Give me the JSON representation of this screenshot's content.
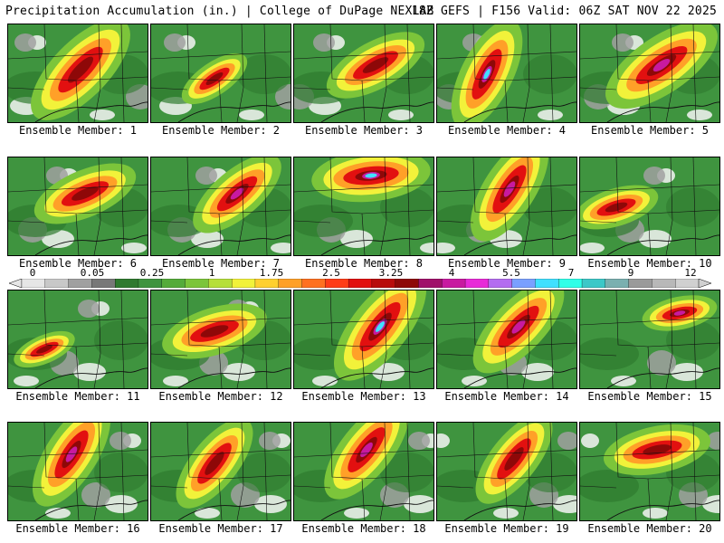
{
  "header": {
    "title": "Precipitation Accumulation (in.) | College of DuPage NEXLAB",
    "run_info": "18Z GEFS | F156 Valid: 06Z SAT NOV 22 2025"
  },
  "colorbar": {
    "labels": [
      "0",
      "0.05",
      "0.25",
      "1",
      "1.75",
      "2.5",
      "3.25",
      "4",
      "5.5",
      "7",
      "9",
      "12"
    ],
    "colors": [
      "#e6e6e6",
      "#c8c8c8",
      "#a0a0a0",
      "#787878",
      "#2f7a2f",
      "#3f943f",
      "#55ab3a",
      "#7cc53a",
      "#b6df3a",
      "#f2f23a",
      "#ffd030",
      "#ffa028",
      "#ff7020",
      "#ff3c18",
      "#e21010",
      "#b80c0c",
      "#8e0808",
      "#a0106a",
      "#c81aa0",
      "#e82ad8",
      "#b46cf0",
      "#7aa0ff",
      "#40e0ff",
      "#30ffe8",
      "#3cc8c8",
      "#7ab0b0",
      "#9a9a9a",
      "#b8b8b8",
      "#d0d0d0"
    ]
  },
  "map_colors": {
    "green_dark": "#2f7a2f",
    "green": "#3f943f",
    "green_light": "#7cc53a",
    "yellow": "#f2f23a",
    "orange": "#ffa028",
    "red": "#e21010",
    "darkred": "#8e0808",
    "magenta": "#c81aa0",
    "cyan": "#40e0ff",
    "gray": "#a0a0a0",
    "white": "#f4f4f4"
  },
  "panels": [
    {
      "label": "Ensemble Member: 1"
    },
    {
      "label": "Ensemble Member: 2"
    },
    {
      "label": "Ensemble Member: 3"
    },
    {
      "label": "Ensemble Member: 4"
    },
    {
      "label": "Ensemble Member: 5"
    },
    {
      "label": "Ensemble Member: 6"
    },
    {
      "label": "Ensemble Member: 7"
    },
    {
      "label": "Ensemble Member: 8"
    },
    {
      "label": "Ensemble Member: 9"
    },
    {
      "label": "Ensemble Member: 10"
    },
    {
      "label": "Ensemble Member: 11"
    },
    {
      "label": "Ensemble Member: 12"
    },
    {
      "label": "Ensemble Member: 13"
    },
    {
      "label": "Ensemble Member: 14"
    },
    {
      "label": "Ensemble Member: 15"
    },
    {
      "label": "Ensemble Member: 16"
    },
    {
      "label": "Ensemble Member: 17"
    },
    {
      "label": "Ensemble Member: 18"
    },
    {
      "label": "Ensemble Member: 19"
    },
    {
      "label": "Ensemble Member: 20"
    }
  ]
}
